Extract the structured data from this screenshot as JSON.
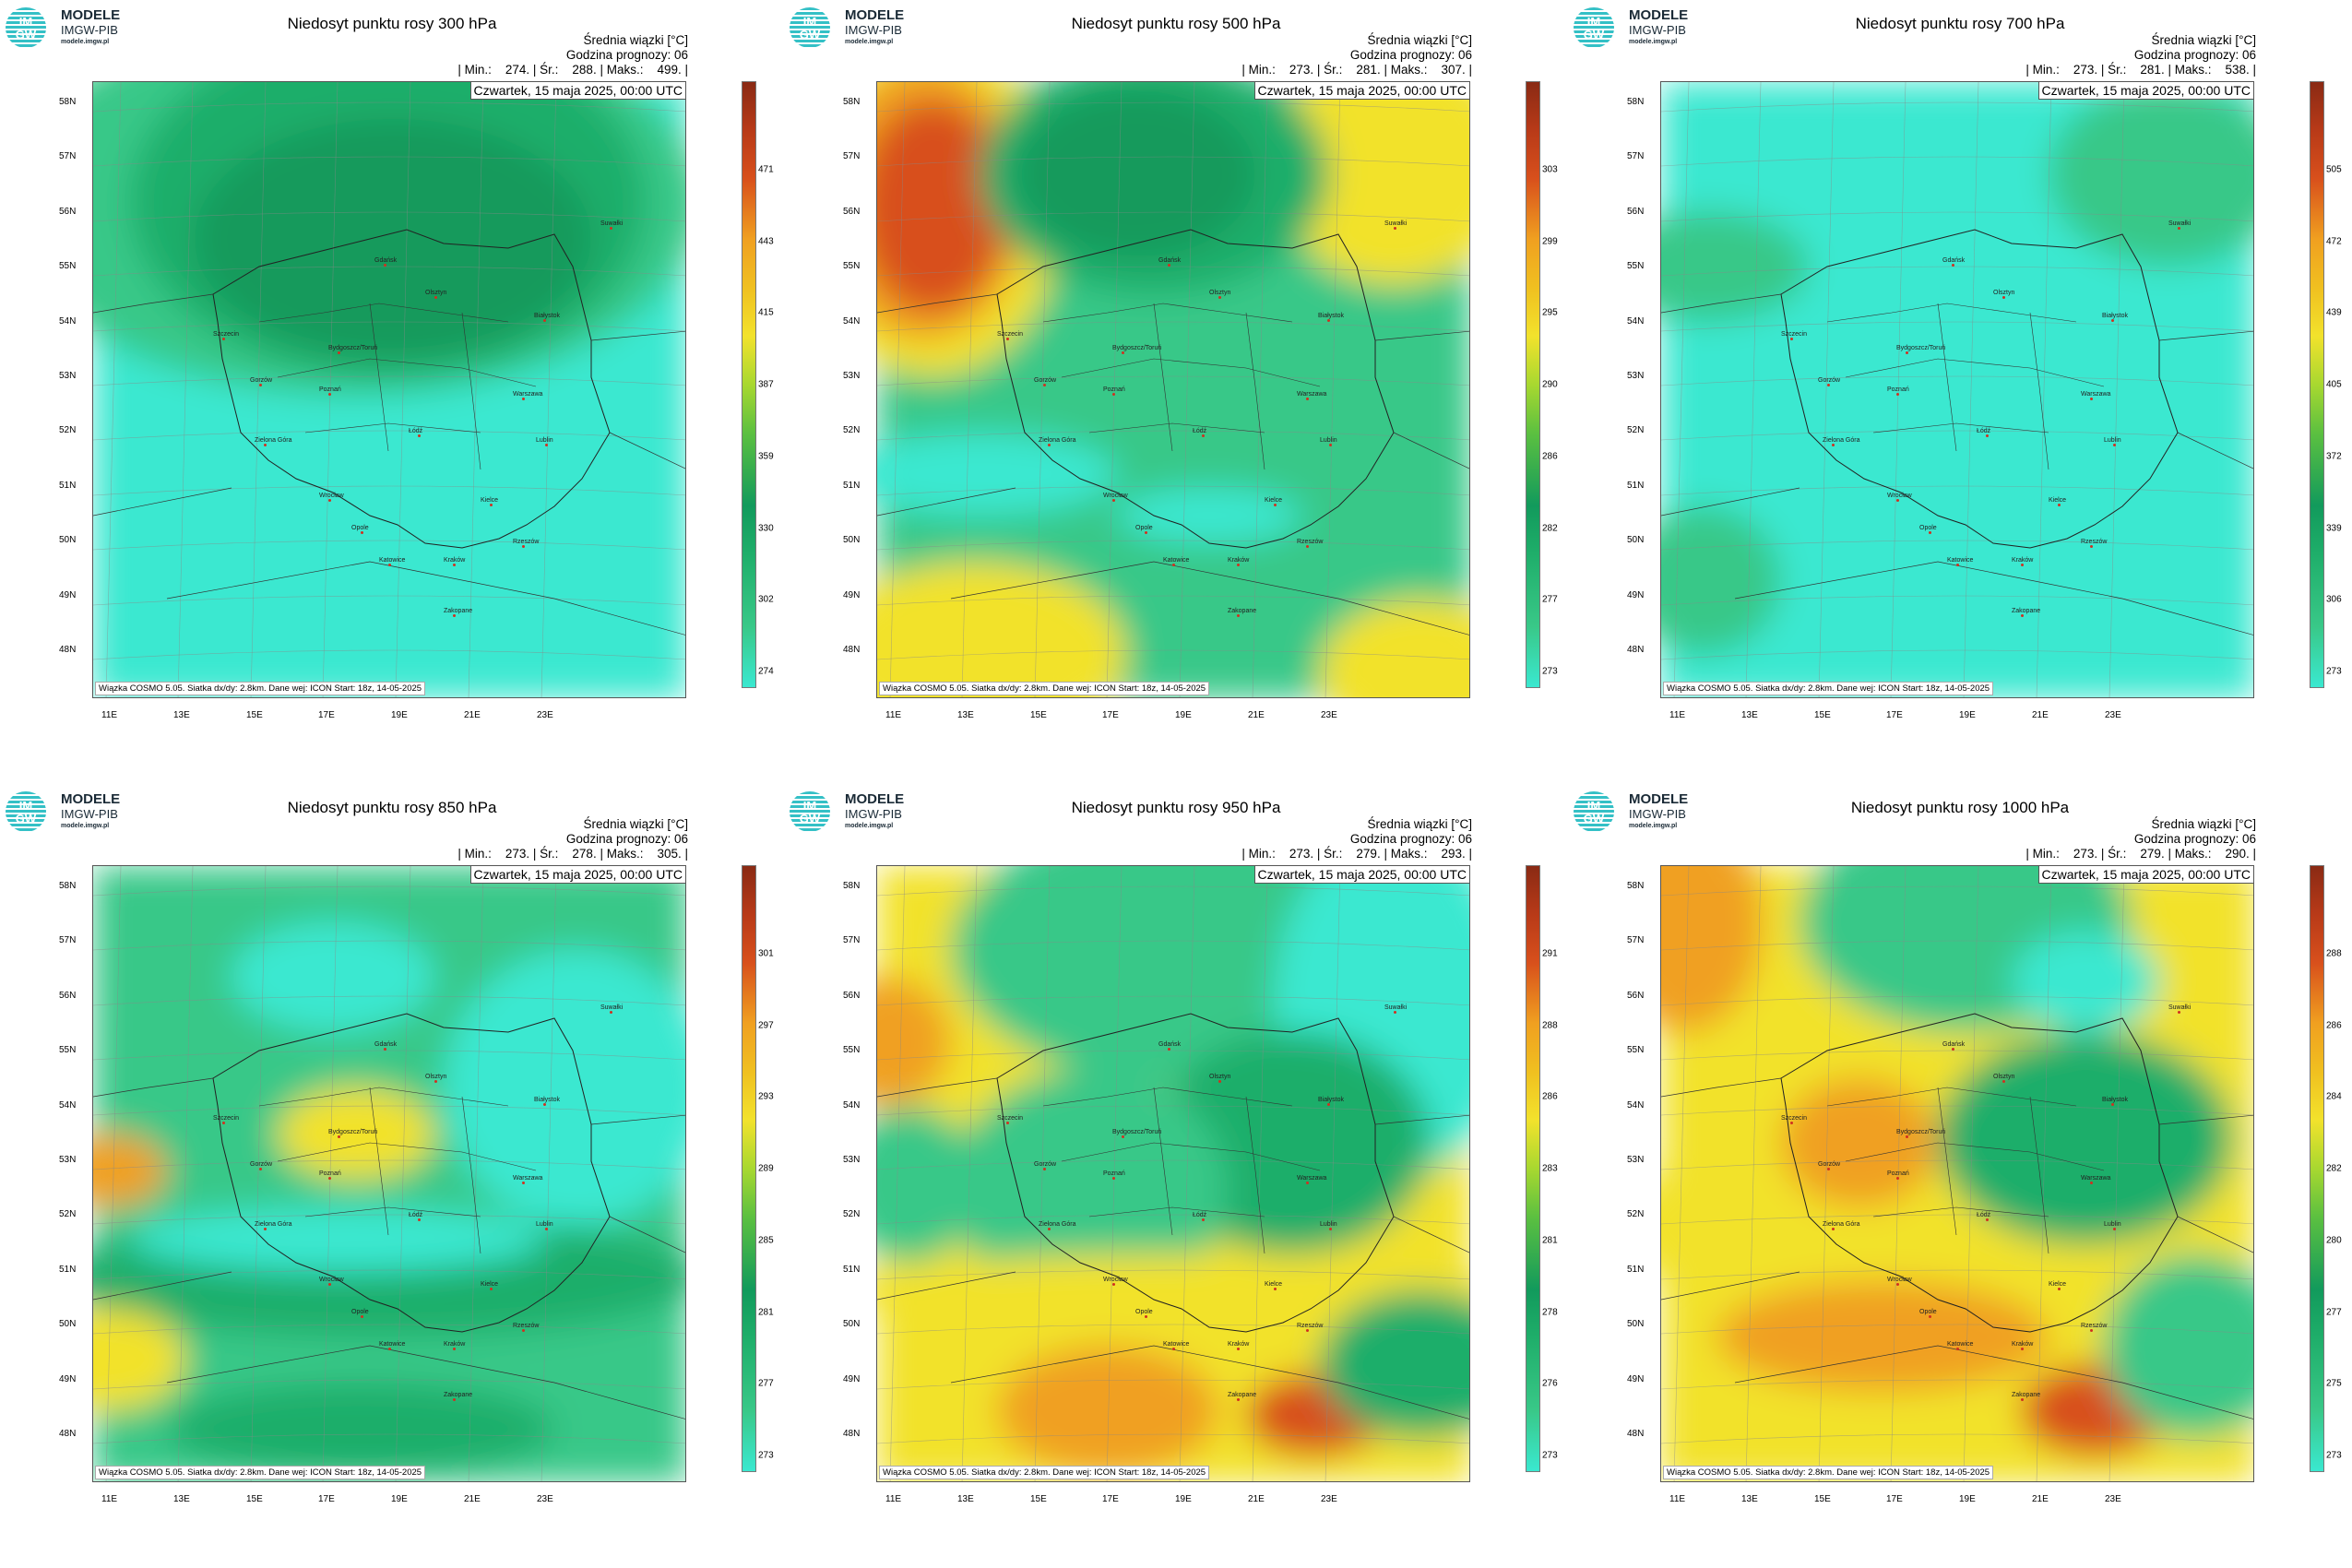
{
  "logo": {
    "line1": "MODELE",
    "line2": "IMGW-PIB",
    "line3": "modele.imgw.pl",
    "badge_top": "IM",
    "badge_bottom": "GW"
  },
  "common": {
    "mean_label": "Średnia wiązki [°C]",
    "forecast_hour": "Godzina prognozy: 06",
    "date": "Czwartek, 15 maja 2025, 00:00 UTC",
    "footer": "Wiązka COSMO 5.05. Siatka dx/dy: 2.8km. Dane wej: ICON Start: 18z, 14-05-2025",
    "lat_labels": [
      "58N",
      "57N",
      "56N",
      "55N",
      "54N",
      "53N",
      "52N",
      "51N",
      "50N",
      "49N",
      "48N"
    ],
    "lon_labels": [
      "11E",
      "13E",
      "15E",
      "17E",
      "19E",
      "21E",
      "23E"
    ]
  },
  "cities": [
    "Gdańsk",
    "Olsztyn",
    "Suwałki",
    "Szczecin",
    "Bydgoszcz/Toruń",
    "Białystok",
    "Gorzów",
    "Poznań",
    "Warszawa",
    "Zielona Góra",
    "Łódź",
    "Lublin",
    "Wrocław",
    "Kielce",
    "Opole",
    "Katowice",
    "Kraków",
    "Rzeszów",
    "Zakopane"
  ],
  "panels": [
    {
      "title": "Niedosyt punktu rosy 300 hPa",
      "stats": "| Min.:    274. | Śr.:    288. | Maks.:    499. |",
      "ticks": [
        "471",
        "443",
        "415",
        "387",
        "359",
        "330",
        "302",
        "274"
      ],
      "pattern": "p300"
    },
    {
      "title": "Niedosyt punktu rosy 500 hPa",
      "stats": "| Min.:    273. | Śr.:    281. | Maks.:    307. |",
      "ticks": [
        "303",
        "299",
        "295",
        "290",
        "286",
        "282",
        "277",
        "273"
      ],
      "pattern": "p500"
    },
    {
      "title": "Niedosyt punktu rosy 700 hPa",
      "stats": "| Min.:    273. | Śr.:    281. | Maks.:    538. |",
      "ticks": [
        "505",
        "472",
        "439",
        "405",
        "372",
        "339",
        "306",
        "273"
      ],
      "pattern": "p700"
    },
    {
      "title": "Niedosyt punktu rosy 850 hPa",
      "stats": "| Min.:    273. | Śr.:    278. | Maks.:    305. |",
      "ticks": [
        "301",
        "297",
        "293",
        "289",
        "285",
        "281",
        "277",
        "273"
      ],
      "pattern": "p850"
    },
    {
      "title": "Niedosyt punktu rosy 950 hPa",
      "stats": "| Min.:    273. | Śr.:    279. | Maks.:    293. |",
      "ticks": [
        "291",
        "288",
        "286",
        "283",
        "281",
        "278",
        "276",
        "273"
      ],
      "pattern": "p950"
    },
    {
      "title": "Niedosyt punktu rosy 1000 hPa",
      "stats": "| Min.:    273. | Śr.:    279. | Maks.:    290. |",
      "ticks": [
        "288",
        "286",
        "284",
        "282",
        "280",
        "277",
        "275",
        "273"
      ],
      "pattern": "p1000"
    }
  ],
  "colors": {
    "cyan": "#3ae8d0",
    "lightgreen": "#39c888",
    "green": "#1fae6a",
    "darkgreen": "#129a5c",
    "yellow": "#f2e22c",
    "orange": "#f0a020",
    "red": "#d8501c",
    "darkred": "#8a2a14"
  }
}
